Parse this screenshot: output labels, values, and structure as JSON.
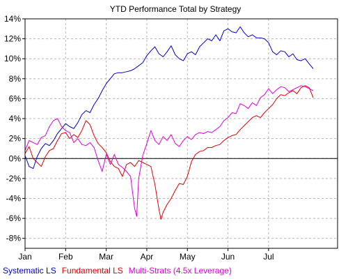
{
  "chart_data": {
    "type": "line",
    "title": "YTD Performance Total by Strategy",
    "xlabel": "",
    "ylabel": "",
    "x_ticks": [
      "Jan",
      "Feb",
      "Mar",
      "Apr",
      "May",
      "Jun",
      "Jul"
    ],
    "y_ticks": [
      "14%",
      "12%",
      "10%",
      "8%",
      "6%",
      "4%",
      "2%",
      "0%",
      "-2%",
      "-4%",
      "-6%",
      "-8%"
    ],
    "ylim": [
      -9,
      14
    ],
    "xlim": [
      0,
      7.7
    ],
    "grid": true,
    "zero_line": true,
    "legend_position": "bottom",
    "series": [
      {
        "name": "Systematic LS",
        "color": "#0000CC",
        "points": [
          [
            0.0,
            0.3
          ],
          [
            0.1,
            -0.8
          ],
          [
            0.2,
            -1.0
          ],
          [
            0.3,
            0.2
          ],
          [
            0.4,
            1.0
          ],
          [
            0.5,
            1.5
          ],
          [
            0.6,
            1.3
          ],
          [
            0.7,
            1.8
          ],
          [
            0.8,
            2.5
          ],
          [
            0.9,
            3.0
          ],
          [
            1.0,
            3.5
          ],
          [
            1.1,
            3.2
          ],
          [
            1.2,
            3.0
          ],
          [
            1.3,
            3.6
          ],
          [
            1.4,
            4.4
          ],
          [
            1.5,
            4.8
          ],
          [
            1.6,
            4.6
          ],
          [
            1.7,
            5.4
          ],
          [
            1.8,
            6.0
          ],
          [
            1.9,
            6.8
          ],
          [
            2.0,
            7.5
          ],
          [
            2.1,
            8.0
          ],
          [
            2.2,
            8.5
          ],
          [
            2.3,
            8.6
          ],
          [
            2.4,
            8.6
          ],
          [
            2.5,
            8.7
          ],
          [
            2.6,
            8.8
          ],
          [
            2.7,
            9.0
          ],
          [
            2.8,
            9.3
          ],
          [
            2.9,
            9.6
          ],
          [
            3.0,
            10.3
          ],
          [
            3.1,
            10.8
          ],
          [
            3.2,
            11.2
          ],
          [
            3.3,
            10.5
          ],
          [
            3.4,
            10.2
          ],
          [
            3.5,
            10.7
          ],
          [
            3.6,
            11.3
          ],
          [
            3.7,
            10.4
          ],
          [
            3.8,
            10.0
          ],
          [
            3.9,
            9.8
          ],
          [
            4.0,
            10.5
          ],
          [
            4.1,
            10.7
          ],
          [
            4.2,
            10.4
          ],
          [
            4.3,
            11.2
          ],
          [
            4.4,
            11.6
          ],
          [
            4.5,
            12.0
          ],
          [
            4.6,
            11.8
          ],
          [
            4.7,
            12.4
          ],
          [
            4.8,
            11.8
          ],
          [
            4.9,
            12.8
          ],
          [
            5.0,
            13.0
          ],
          [
            5.1,
            12.7
          ],
          [
            5.2,
            12.6
          ],
          [
            5.3,
            13.2
          ],
          [
            5.4,
            12.6
          ],
          [
            5.5,
            12.2
          ],
          [
            5.6,
            12.4
          ],
          [
            5.7,
            12.1
          ],
          [
            5.8,
            12.1
          ],
          [
            5.9,
            12.0
          ],
          [
            6.0,
            11.6
          ],
          [
            6.1,
            10.7
          ],
          [
            6.2,
            10.4
          ],
          [
            6.3,
            10.8
          ],
          [
            6.4,
            10.7
          ],
          [
            6.5,
            10.2
          ],
          [
            6.6,
            10.5
          ],
          [
            6.7,
            9.9
          ],
          [
            6.8,
            9.8
          ],
          [
            6.9,
            10.0
          ],
          [
            7.0,
            9.5
          ],
          [
            7.1,
            9.0
          ]
        ]
      },
      {
        "name": "Fundamental LS",
        "color": "#DD0000",
        "points": [
          [
            0.0,
            0.5
          ],
          [
            0.1,
            1.2
          ],
          [
            0.2,
            0.0
          ],
          [
            0.3,
            -0.4
          ],
          [
            0.4,
            -0.8
          ],
          [
            0.5,
            0.2
          ],
          [
            0.6,
            0.8
          ],
          [
            0.7,
            1.0
          ],
          [
            0.8,
            1.8
          ],
          [
            0.9,
            2.5
          ],
          [
            1.0,
            2.6
          ],
          [
            1.1,
            2.0
          ],
          [
            1.2,
            2.4
          ],
          [
            1.3,
            2.1
          ],
          [
            1.4,
            2.8
          ],
          [
            1.5,
            3.8
          ],
          [
            1.6,
            3.4
          ],
          [
            1.7,
            2.3
          ],
          [
            1.8,
            1.5
          ],
          [
            1.9,
            1.1
          ],
          [
            2.0,
            0.6
          ],
          [
            2.1,
            -0.3
          ],
          [
            2.2,
            -0.8
          ],
          [
            2.3,
            -1.0
          ],
          [
            2.4,
            -1.8
          ],
          [
            2.5,
            -0.6
          ],
          [
            2.6,
            -0.4
          ],
          [
            2.7,
            -0.8
          ],
          [
            2.8,
            -0.2
          ],
          [
            2.9,
            -0.4
          ],
          [
            3.0,
            -0.6
          ],
          [
            3.1,
            -0.8
          ],
          [
            3.2,
            -2.6
          ],
          [
            3.3,
            -5.1
          ],
          [
            3.35,
            -6.1
          ],
          [
            3.4,
            -5.4
          ],
          [
            3.5,
            -4.6
          ],
          [
            3.6,
            -4.0
          ],
          [
            3.7,
            -3.2
          ],
          [
            3.8,
            -2.5
          ],
          [
            3.9,
            -2.6
          ],
          [
            4.0,
            -1.8
          ],
          [
            4.1,
            -0.3
          ],
          [
            4.2,
            0.4
          ],
          [
            4.3,
            0.7
          ],
          [
            4.4,
            0.8
          ],
          [
            4.5,
            1.1
          ],
          [
            4.6,
            1.1
          ],
          [
            4.7,
            1.3
          ],
          [
            4.8,
            1.4
          ],
          [
            4.9,
            1.8
          ],
          [
            5.0,
            2.1
          ],
          [
            5.1,
            2.3
          ],
          [
            5.2,
            2.4
          ],
          [
            5.3,
            2.9
          ],
          [
            5.4,
            3.3
          ],
          [
            5.5,
            3.7
          ],
          [
            5.6,
            4.1
          ],
          [
            5.7,
            4.3
          ],
          [
            5.8,
            4.1
          ],
          [
            5.9,
            4.6
          ],
          [
            6.0,
            5.0
          ],
          [
            6.1,
            5.4
          ],
          [
            6.2,
            6.0
          ],
          [
            6.3,
            6.4
          ],
          [
            6.4,
            6.3
          ],
          [
            6.5,
            6.6
          ],
          [
            6.6,
            6.8
          ],
          [
            6.7,
            6.5
          ],
          [
            6.8,
            7.1
          ],
          [
            6.9,
            7.3
          ],
          [
            7.0,
            7.1
          ],
          [
            7.1,
            6.1
          ]
        ]
      },
      {
        "name": "Multi-Strats (4.5x Leverage)",
        "color": "#DD00DD",
        "points": [
          [
            0.0,
            0.8
          ],
          [
            0.1,
            1.8
          ],
          [
            0.2,
            1.6
          ],
          [
            0.3,
            1.4
          ],
          [
            0.4,
            2.1
          ],
          [
            0.5,
            2.3
          ],
          [
            0.6,
            3.2
          ],
          [
            0.7,
            3.8
          ],
          [
            0.8,
            4.0
          ],
          [
            0.9,
            3.2
          ],
          [
            1.0,
            2.8
          ],
          [
            1.1,
            2.6
          ],
          [
            1.2,
            1.6
          ],
          [
            1.3,
            2.0
          ],
          [
            1.4,
            1.4
          ],
          [
            1.5,
            1.3
          ],
          [
            1.6,
            1.6
          ],
          [
            1.7,
            1.1
          ],
          [
            1.8,
            -0.2
          ],
          [
            1.9,
            -1.3
          ],
          [
            2.0,
            0.4
          ],
          [
            2.1,
            -0.6
          ],
          [
            2.2,
            0.4
          ],
          [
            2.3,
            -0.6
          ],
          [
            2.4,
            -0.9
          ],
          [
            2.5,
            -1.3
          ],
          [
            2.6,
            -1.8
          ],
          [
            2.7,
            -5.0
          ],
          [
            2.75,
            -5.8
          ],
          [
            2.8,
            -2.0
          ],
          [
            2.9,
            0.3
          ],
          [
            3.0,
            1.5
          ],
          [
            3.1,
            2.8
          ],
          [
            3.2,
            1.8
          ],
          [
            3.3,
            1.4
          ],
          [
            3.4,
            2.2
          ],
          [
            3.5,
            1.8
          ],
          [
            3.6,
            2.4
          ],
          [
            3.7,
            1.5
          ],
          [
            3.8,
            1.2
          ],
          [
            3.9,
            1.8
          ],
          [
            4.0,
            2.2
          ],
          [
            4.1,
            1.9
          ],
          [
            4.2,
            2.4
          ],
          [
            4.3,
            2.6
          ],
          [
            4.4,
            2.5
          ],
          [
            4.5,
            2.7
          ],
          [
            4.6,
            2.6
          ],
          [
            4.7,
            2.9
          ],
          [
            4.8,
            3.2
          ],
          [
            4.9,
            3.8
          ],
          [
            5.0,
            4.1
          ],
          [
            5.1,
            4.6
          ],
          [
            5.2,
            4.5
          ],
          [
            5.3,
            5.5
          ],
          [
            5.4,
            5.3
          ],
          [
            5.5,
            5.0
          ],
          [
            5.6,
            5.6
          ],
          [
            5.7,
            5.3
          ],
          [
            5.8,
            6.1
          ],
          [
            5.9,
            6.4
          ],
          [
            6.0,
            7.0
          ],
          [
            6.1,
            6.5
          ],
          [
            6.2,
            6.9
          ],
          [
            6.3,
            7.2
          ],
          [
            6.4,
            7.1
          ],
          [
            6.5,
            6.7
          ],
          [
            6.6,
            6.9
          ],
          [
            6.7,
            7.1
          ],
          [
            6.8,
            7.3
          ],
          [
            6.9,
            7.2
          ],
          [
            7.0,
            7.0
          ],
          [
            7.1,
            6.8
          ]
        ]
      }
    ]
  }
}
